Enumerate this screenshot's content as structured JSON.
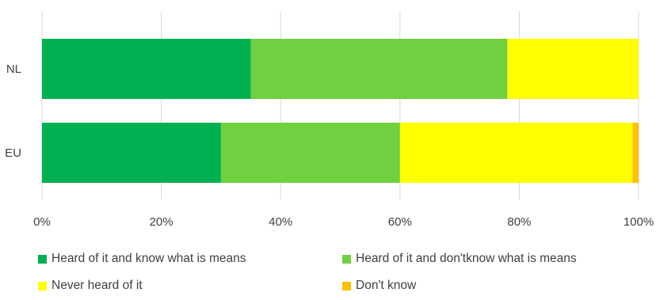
{
  "chart_data": {
    "type": "bar",
    "orientation": "horizontal",
    "stacked": true,
    "percent_stacked": true,
    "categories": [
      "NL",
      "EU"
    ],
    "series": [
      {
        "name": "Heard of it and know what is means",
        "color": "#00b050",
        "values": [
          35,
          30
        ]
      },
      {
        "name": "Heard of it and don'tknow what is means",
        "color": "#6fd040",
        "values": [
          43,
          30
        ]
      },
      {
        "name": "Never heard of it",
        "color": "#ffff00",
        "values": [
          22,
          39
        ]
      },
      {
        "name": "Don't know",
        "color": "#ffc000",
        "values": [
          0,
          1
        ]
      }
    ],
    "xlim": [
      0,
      100
    ],
    "xticks": [
      "0%",
      "20%",
      "40%",
      "60%",
      "80%",
      "100%"
    ],
    "grid": "vertical",
    "legend_position": "bottom"
  }
}
